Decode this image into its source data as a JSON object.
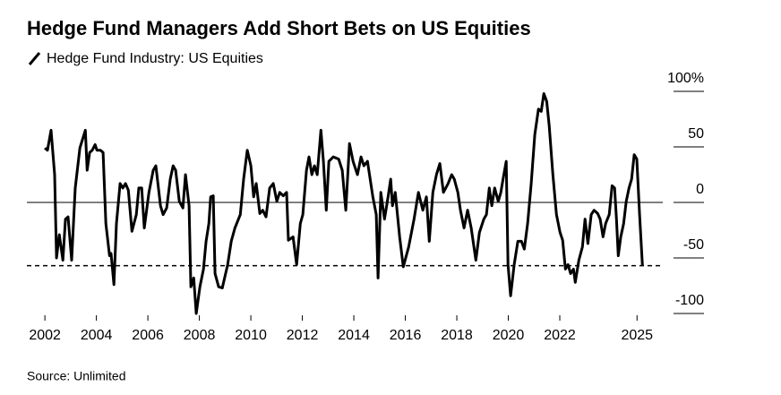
{
  "chart_data": {
    "type": "line",
    "title": "Hedge Fund Managers Add Short Bets on US Equities",
    "source": "Source: Unlimited",
    "x": [
      2002.0,
      2002.1,
      2002.24,
      2002.38,
      2002.45,
      2002.56,
      2002.7,
      2002.8,
      2002.9,
      2003.04,
      2003.18,
      2003.36,
      2003.57,
      2003.64,
      2003.74,
      2003.84,
      2003.95,
      2004.02,
      2004.16,
      2004.26,
      2004.37,
      2004.51,
      2004.57,
      2004.68,
      2004.78,
      2004.92,
      2005.03,
      2005.13,
      2005.24,
      2005.38,
      2005.55,
      2005.65,
      2005.76,
      2005.86,
      2006.04,
      2006.21,
      2006.31,
      2006.49,
      2006.59,
      2006.73,
      2006.87,
      2006.98,
      2007.08,
      2007.22,
      2007.36,
      2007.46,
      2007.6,
      2007.67,
      2007.78,
      2007.88,
      2008.02,
      2008.16,
      2008.26,
      2008.37,
      2008.44,
      2008.54,
      2008.61,
      2008.75,
      2008.89,
      2009.1,
      2009.24,
      2009.38,
      2009.59,
      2009.72,
      2009.86,
      2010.0,
      2010.11,
      2010.21,
      2010.35,
      2010.46,
      2010.59,
      2010.73,
      2010.87,
      2011.01,
      2011.12,
      2011.26,
      2011.39,
      2011.46,
      2011.64,
      2011.78,
      2011.92,
      2012.02,
      2012.16,
      2012.26,
      2012.37,
      2012.47,
      2012.58,
      2012.72,
      2012.82,
      2012.93,
      2013.03,
      2013.2,
      2013.41,
      2013.55,
      2013.69,
      2013.83,
      2013.97,
      2014.14,
      2014.28,
      2014.39,
      2014.53,
      2014.74,
      2014.87,
      2014.94,
      2015.05,
      2015.19,
      2015.33,
      2015.43,
      2015.5,
      2015.61,
      2015.78,
      2015.92,
      2016.13,
      2016.34,
      2016.51,
      2016.68,
      2016.82,
      2016.93,
      2017.07,
      2017.21,
      2017.34,
      2017.48,
      2017.66,
      2017.8,
      2017.9,
      2018.04,
      2018.14,
      2018.28,
      2018.42,
      2018.56,
      2018.74,
      2018.88,
      2019.05,
      2019.15,
      2019.26,
      2019.36,
      2019.47,
      2019.61,
      2019.71,
      2019.81,
      2019.92,
      2019.99,
      2020.09,
      2020.23,
      2020.37,
      2020.51,
      2020.62,
      2020.75,
      2020.89,
      2021.03,
      2021.17,
      2021.28,
      2021.38,
      2021.49,
      2021.59,
      2021.73,
      2021.87,
      2022.01,
      2022.11,
      2022.22,
      2022.32,
      2022.42,
      2022.53,
      2022.6,
      2022.74,
      2022.88,
      2022.98,
      2023.09,
      2023.22,
      2023.33,
      2023.47,
      2023.57,
      2023.68,
      2023.78,
      2023.92,
      2024.03,
      2024.13,
      2024.2,
      2024.27,
      2024.37,
      2024.48,
      2024.58,
      2024.69,
      2024.79,
      2024.89,
      2024.99,
      2025.1,
      2025.21
    ],
    "series": [
      {
        "name": "Hedge Fund Industry: US Equities",
        "color": "#000000",
        "values": [
          49,
          47,
          65,
          25,
          -50,
          -29,
          -52,
          -15,
          -13,
          -52,
          13,
          49,
          65,
          29,
          45,
          47,
          52,
          47,
          47,
          45,
          -19,
          -48,
          -46,
          -74,
          -19,
          17,
          13,
          17,
          11,
          -26,
          -11,
          13,
          13,
          -23,
          9,
          29,
          33,
          -3,
          -11,
          -5,
          21,
          33,
          29,
          1,
          -5,
          25,
          -3,
          -76,
          -68,
          -100,
          -76,
          -60,
          -35,
          -19,
          5,
          6,
          -64,
          -76,
          -77,
          -56,
          -35,
          -23,
          -11,
          21,
          47,
          33,
          5,
          17,
          -10,
          -7,
          -13,
          13,
          17,
          1,
          9,
          6,
          9,
          -34,
          -31,
          -56,
          -19,
          -11,
          29,
          41,
          25,
          33,
          25,
          65,
          37,
          -7,
          37,
          41,
          39,
          29,
          -7,
          53,
          37,
          25,
          41,
          33,
          37,
          5,
          -11,
          -68,
          9,
          -15,
          5,
          21,
          -3,
          9,
          -31,
          -58,
          -40,
          -15,
          9,
          -7,
          5,
          -35,
          9,
          25,
          35,
          9,
          17,
          25,
          21,
          9,
          -7,
          -23,
          -7,
          -23,
          -52,
          -27,
          -15,
          -11,
          13,
          -3,
          13,
          1,
          9,
          23,
          37,
          -56,
          -84,
          -56,
          -35,
          -35,
          -42,
          -19,
          17,
          61,
          84,
          82,
          98,
          91,
          69,
          25,
          -11,
          -27,
          -34,
          -60,
          -56,
          -64,
          -60,
          -72,
          -52,
          -40,
          -15,
          -37,
          -11,
          -7,
          -10,
          -15,
          -31,
          -19,
          -11,
          15,
          13,
          -15,
          -48,
          -31,
          -19,
          1,
          13,
          21,
          43,
          39,
          -11,
          -57
        ]
      }
    ],
    "reference_value": -57,
    "xlim": [
      2001.3,
      2026.0
    ],
    "xticks": [
      2002,
      2004,
      2006,
      2008,
      2010,
      2012,
      2014,
      2016,
      2018,
      2020,
      2022,
      2025
    ],
    "ylim": [
      -100,
      100
    ],
    "yticks": [
      {
        "value": 100,
        "label": "100%"
      },
      50,
      0,
      -50,
      -100
    ]
  }
}
